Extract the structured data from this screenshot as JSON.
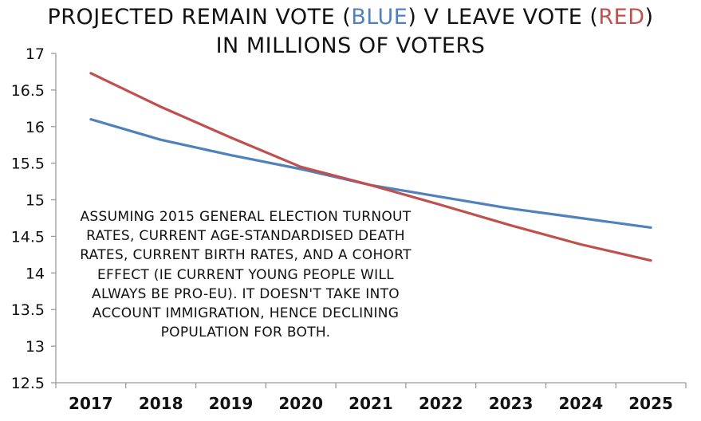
{
  "title": {
    "line1_a": "PROJECTED REMAIN VOTE (",
    "line1_blue": "BLUE",
    "line1_b": ") V LEAVE VOTE (",
    "line1_red": "RED",
    "line1_c": ")",
    "line2": "IN MILLIONS OF VOTERS"
  },
  "annotation": {
    "lines": [
      "ASSUMING 2015 GENERAL ELECTION TURNOUT",
      "RATES, CURRENT AGE-STANDARDISED DEATH",
      "RATES, CURRENT BIRTH RATES, AND A COHORT",
      "EFFECT (IE CURRENT YOUNG PEOPLE WILL",
      "ALWAYS BE PRO-EU). IT DOESN'T TAKE INTO",
      "ACCOUNT IMMIGRATION, HENCE DECLINING",
      "POPULATION FOR BOTH."
    ]
  },
  "chart_data": {
    "type": "line",
    "categories": [
      "2017",
      "2018",
      "2019",
      "2020",
      "2021",
      "2022",
      "2023",
      "2024",
      "2025"
    ],
    "series": [
      {
        "values": [
          16.1,
          15.82,
          15.61,
          15.42,
          15.2,
          15.04,
          14.88,
          14.75,
          14.62
        ],
        "color": "#4f81bd"
      },
      {
        "values": [
          16.73,
          16.27,
          15.85,
          15.45,
          15.2,
          14.93,
          14.65,
          14.39,
          14.17
        ],
        "color": "#c0504d"
      }
    ],
    "yticks": [
      "12.5",
      "13",
      "13.5",
      "14",
      "14.5",
      "15",
      "15.5",
      "16",
      "16.5",
      "17"
    ],
    "ylim": [
      12.5,
      17
    ],
    "grid": false,
    "axis_color": "#9a9a9a"
  }
}
